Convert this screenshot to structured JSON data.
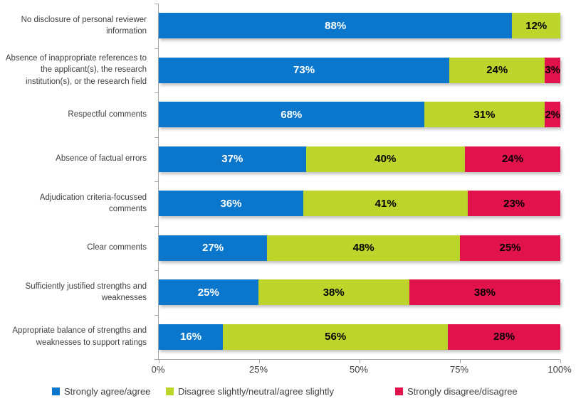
{
  "chart_data": {
    "type": "bar",
    "orientation": "horizontal",
    "stacked": true,
    "title": "",
    "xlabel": "",
    "ylabel": "",
    "xlim": [
      0,
      100
    ],
    "x_ticks": [
      "0%",
      "25%",
      "50%",
      "75%",
      "100%"
    ],
    "grid": false,
    "legend_position": "bottom",
    "value_suffix": "%",
    "categories": [
      "No disclosure of personal reviewer information",
      "Absence of inappropriate references to the applicant(s), the research institution(s), or the research field",
      "Respectful comments",
      "Absence of factual errors",
      "Adjudication criteria-focussed comments",
      "Clear comments",
      "Sufficiently justified strengths and weaknesses",
      "Appropriate balance of strengths and weaknesses to support ratings"
    ],
    "series": [
      {
        "name": "Strongly agree/agree",
        "color": "#0b77cc",
        "label_color": "#ffffff",
        "values": [
          88,
          73,
          68,
          37,
          36,
          27,
          25,
          16
        ]
      },
      {
        "name": "Disagree slightly/neutral/agree slightly",
        "color": "#bdd52b",
        "label_color": "#000000",
        "values": [
          12,
          24,
          31,
          40,
          41,
          48,
          38,
          56
        ]
      },
      {
        "name": "Strongly disagree/disagree",
        "color": "#e2124d",
        "label_color": "#000000",
        "values": [
          0,
          3,
          2,
          24,
          23,
          25,
          38,
          28
        ]
      }
    ]
  },
  "layout_colors": {
    "axis": "#a6a6a6",
    "text": "#3f3f3f",
    "background": "#ffffff"
  }
}
